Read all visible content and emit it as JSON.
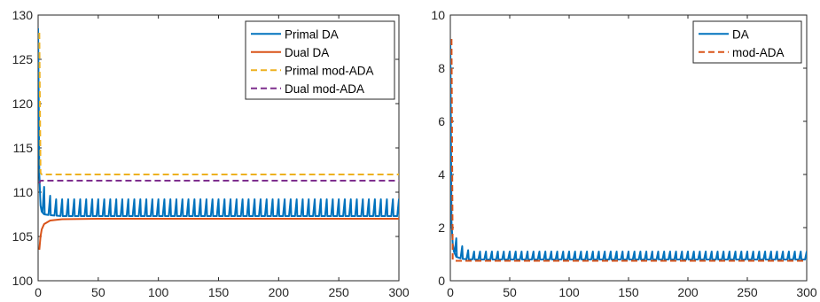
{
  "chart_data": [
    {
      "type": "line",
      "title": "",
      "xlabel": "",
      "ylabel": "",
      "xlim": [
        0,
        300
      ],
      "ylim": [
        100,
        130
      ],
      "xticks": [
        "0",
        "50",
        "100",
        "150",
        "200",
        "250",
        "300"
      ],
      "yticks": [
        "100",
        "105",
        "110",
        "115",
        "120",
        "125",
        "130"
      ],
      "grid": false,
      "legend_position": "top-right",
      "series": [
        {
          "name": "Primal DA",
          "color": "#0072BD",
          "style": "solid",
          "shape": "periodic-spikes",
          "x": [
            0,
            1,
            2,
            3,
            5,
            10,
            20,
            50,
            100,
            150,
            200,
            250,
            300
          ],
          "values": [
            128.5,
            112,
            108.5,
            107.8,
            107.5,
            107.4,
            107.3,
            107.3,
            107.3,
            107.3,
            107.3,
            107.3,
            107.3
          ],
          "spike_period": 5,
          "spike_start": 5,
          "spike_peak": [
            110.6,
            109.6,
            109.2,
            109.2,
            109.2,
            109.2
          ]
        },
        {
          "name": "Dual DA",
          "color": "#D95319",
          "style": "solid",
          "x": [
            1,
            2,
            3,
            5,
            10,
            20,
            50,
            100,
            150,
            200,
            250,
            300
          ],
          "values": [
            103.5,
            105.0,
            105.8,
            106.4,
            106.8,
            106.95,
            107.0,
            107.0,
            107.0,
            107.0,
            107.0,
            107.0
          ]
        },
        {
          "name": "Primal mod-ADA",
          "color": "#EDB120",
          "style": "dashed",
          "x": [
            1,
            2,
            3,
            300
          ],
          "values": [
            128.0,
            112.2,
            112.0,
            112.0
          ]
        },
        {
          "name": "Dual mod-ADA",
          "color": "#7E2F8E",
          "style": "dashed",
          "x": [
            1,
            2,
            3,
            300
          ],
          "values": [
            111.0,
            111.3,
            111.3,
            111.3
          ]
        }
      ]
    },
    {
      "type": "line",
      "title": "",
      "xlabel": "",
      "ylabel": "",
      "xlim": [
        0,
        300
      ],
      "ylim": [
        0,
        10
      ],
      "xticks": [
        "0",
        "50",
        "100",
        "150",
        "200",
        "250",
        "300"
      ],
      "yticks": [
        "0",
        "2",
        "4",
        "6",
        "8",
        "10"
      ],
      "grid": false,
      "legend_position": "top-right",
      "series": [
        {
          "name": "DA",
          "color": "#0072BD",
          "style": "solid",
          "shape": "periodic-spikes",
          "x": [
            0,
            1,
            2,
            3,
            5,
            10,
            20,
            50,
            100,
            150,
            200,
            250,
            300
          ],
          "values": [
            9.1,
            2.2,
            1.4,
            1.1,
            0.9,
            0.82,
            0.8,
            0.8,
            0.8,
            0.8,
            0.8,
            0.8,
            0.8
          ],
          "spike_period": 5,
          "spike_start": 5,
          "spike_peak": [
            1.6,
            1.3,
            1.15,
            1.1,
            1.1,
            1.1
          ]
        },
        {
          "name": "mod-ADA",
          "color": "#D95319",
          "style": "dashed",
          "x": [
            1,
            2,
            3,
            300
          ],
          "values": [
            9.1,
            0.8,
            0.75,
            0.75
          ]
        }
      ]
    }
  ]
}
